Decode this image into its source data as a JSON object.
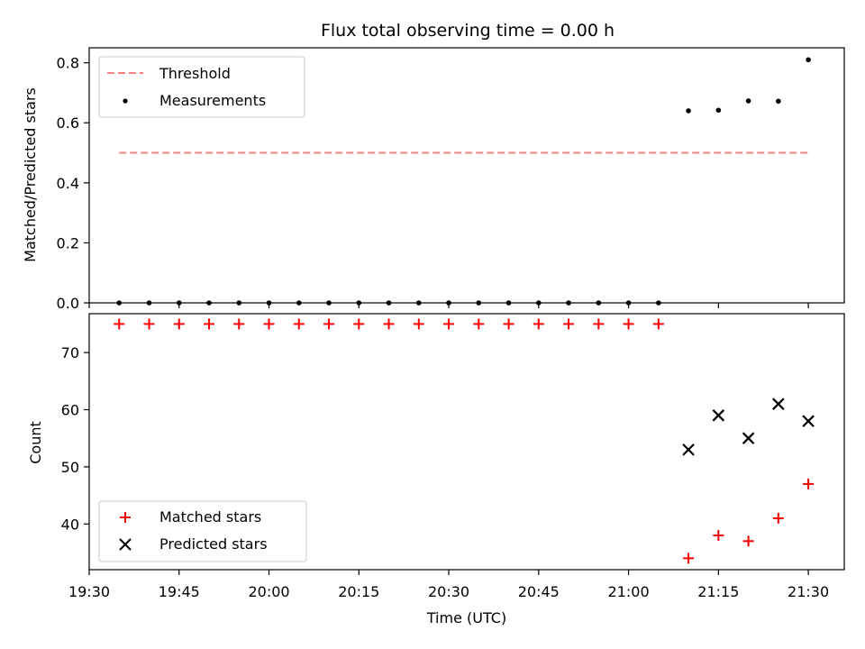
{
  "chart_data": [
    {
      "type": "scatter",
      "title": "Flux total observing time = 0.00 h",
      "xlabel": "",
      "ylabel": "Matched/Predicted stars",
      "x_range": [
        "19:30",
        "21:36"
      ],
      "ylim": [
        0,
        0.85
      ],
      "y_ticks": [
        "0.0",
        "0.2",
        "0.4",
        "0.6",
        "0.8"
      ],
      "grid": false,
      "legend_position": "upper-left",
      "threshold": {
        "name": "Threshold",
        "y": 0.5,
        "x_from": "19:35",
        "x_to": "21:30",
        "color": "#ff7f7f",
        "style": "dashed"
      },
      "series": [
        {
          "name": "Measurements",
          "marker": "dot",
          "color": "#000000",
          "x": [
            "19:35",
            "19:40",
            "19:45",
            "19:50",
            "19:55",
            "20:00",
            "20:05",
            "20:10",
            "20:15",
            "20:20",
            "20:25",
            "20:30",
            "20:35",
            "20:40",
            "20:45",
            "20:50",
            "20:55",
            "21:00",
            "21:05",
            "21:10",
            "21:15",
            "21:20",
            "21:25",
            "21:30"
          ],
          "y": [
            0,
            0,
            0,
            0,
            0,
            0,
            0,
            0,
            0,
            0,
            0,
            0,
            0,
            0,
            0,
            0,
            0,
            0,
            0,
            0.64,
            0.642,
            0.673,
            0.672,
            0.81
          ]
        }
      ]
    },
    {
      "type": "scatter",
      "title": "",
      "xlabel": "Time (UTC)",
      "ylabel": "Count",
      "x_range": [
        "19:30",
        "21:36"
      ],
      "x_ticks": [
        "19:30",
        "19:45",
        "20:00",
        "20:15",
        "20:30",
        "20:45",
        "21:00",
        "21:15",
        "21:30"
      ],
      "ylim": [
        32,
        76.8
      ],
      "y_ticks": [
        "40",
        "50",
        "60",
        "70"
      ],
      "grid": false,
      "legend_position": "lower-left",
      "series": [
        {
          "name": "Matched stars",
          "marker": "plus",
          "color": "#ff0000",
          "x": [
            "19:35",
            "19:40",
            "19:45",
            "19:50",
            "19:55",
            "20:00",
            "20:05",
            "20:10",
            "20:15",
            "20:20",
            "20:25",
            "20:30",
            "20:35",
            "20:40",
            "20:45",
            "20:50",
            "20:55",
            "21:00",
            "21:05",
            "21:10",
            "21:15",
            "21:20",
            "21:25",
            "21:30"
          ],
          "y": [
            75,
            75,
            75,
            75,
            75,
            75,
            75,
            75,
            75,
            75,
            75,
            75,
            75,
            75,
            75,
            75,
            75,
            75,
            75,
            34,
            38,
            37,
            41,
            47
          ]
        },
        {
          "name": "Predicted stars",
          "marker": "x",
          "color": "#000000",
          "x": [
            "21:10",
            "21:15",
            "21:20",
            "21:25",
            "21:30"
          ],
          "y": [
            53,
            59,
            55,
            61,
            58
          ]
        }
      ]
    }
  ]
}
